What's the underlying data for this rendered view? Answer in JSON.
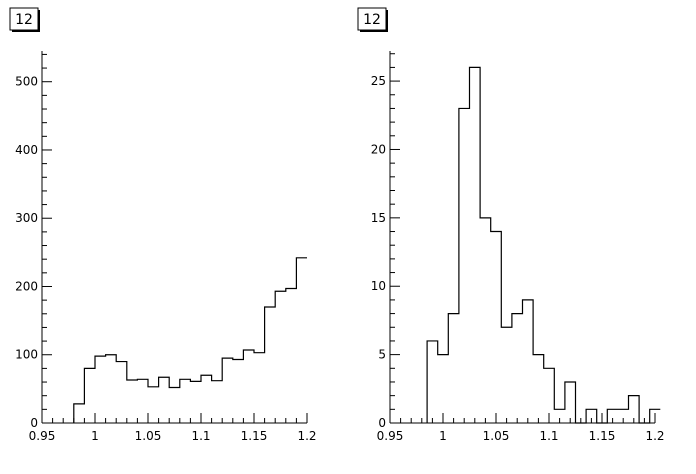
{
  "chart_data": [
    {
      "type": "bar",
      "title": "12",
      "xlim": [
        0.95,
        1.2
      ],
      "ylim": [
        0,
        545
      ],
      "bin_width": 0.01,
      "x_ticks": [
        {
          "value": 0.95,
          "label": "0.95"
        },
        {
          "value": 1.0,
          "label": "1"
        },
        {
          "value": 1.05,
          "label": "1.05"
        },
        {
          "value": 1.1,
          "label": "1.1"
        },
        {
          "value": 1.15,
          "label": "1.15"
        },
        {
          "value": 1.2,
          "label": "1.2"
        }
      ],
      "y_ticks": [
        {
          "value": 0,
          "label": "0"
        },
        {
          "value": 100,
          "label": "100"
        },
        {
          "value": 200,
          "label": "200"
        },
        {
          "value": 300,
          "label": "300"
        },
        {
          "value": 400,
          "label": "400"
        },
        {
          "value": 500,
          "label": "500"
        }
      ],
      "bins": [
        {
          "x": 0.98,
          "y": 28
        },
        {
          "x": 0.99,
          "y": 80
        },
        {
          "x": 1.0,
          "y": 98
        },
        {
          "x": 1.01,
          "y": 100
        },
        {
          "x": 1.02,
          "y": 90
        },
        {
          "x": 1.03,
          "y": 63
        },
        {
          "x": 1.04,
          "y": 64
        },
        {
          "x": 1.05,
          "y": 53
        },
        {
          "x": 1.06,
          "y": 67
        },
        {
          "x": 1.07,
          "y": 52
        },
        {
          "x": 1.08,
          "y": 64
        },
        {
          "x": 1.09,
          "y": 61
        },
        {
          "x": 1.1,
          "y": 70
        },
        {
          "x": 1.11,
          "y": 62
        },
        {
          "x": 1.12,
          "y": 95
        },
        {
          "x": 1.13,
          "y": 93
        },
        {
          "x": 1.14,
          "y": 107
        },
        {
          "x": 1.15,
          "y": 103
        },
        {
          "x": 1.16,
          "y": 170
        },
        {
          "x": 1.17,
          "y": 193
        },
        {
          "x": 1.18,
          "y": 197
        },
        {
          "x": 1.19,
          "y": 242
        }
      ]
    },
    {
      "type": "bar",
      "title": "12",
      "xlim": [
        0.95,
        1.2
      ],
      "ylim": [
        0,
        27.2
      ],
      "bin_width": 0.01,
      "x_ticks": [
        {
          "value": 0.95,
          "label": "0.95"
        },
        {
          "value": 1.0,
          "label": "1"
        },
        {
          "value": 1.05,
          "label": "1.05"
        },
        {
          "value": 1.1,
          "label": "1.1"
        },
        {
          "value": 1.15,
          "label": "1.15"
        },
        {
          "value": 1.2,
          "label": "1.2"
        }
      ],
      "y_ticks": [
        {
          "value": 0,
          "label": "0"
        },
        {
          "value": 5,
          "label": "5"
        },
        {
          "value": 10,
          "label": "10"
        },
        {
          "value": 15,
          "label": "15"
        },
        {
          "value": 20,
          "label": "20"
        },
        {
          "value": 25,
          "label": "25"
        }
      ],
      "bins": [
        {
          "x": 0.985,
          "y": 6
        },
        {
          "x": 0.995,
          "y": 5
        },
        {
          "x": 1.005,
          "y": 8
        },
        {
          "x": 1.015,
          "y": 23
        },
        {
          "x": 1.025,
          "y": 26
        },
        {
          "x": 1.035,
          "y": 15
        },
        {
          "x": 1.045,
          "y": 14
        },
        {
          "x": 1.055,
          "y": 7
        },
        {
          "x": 1.065,
          "y": 8
        },
        {
          "x": 1.075,
          "y": 9
        },
        {
          "x": 1.085,
          "y": 5
        },
        {
          "x": 1.095,
          "y": 4
        },
        {
          "x": 1.105,
          "y": 1
        },
        {
          "x": 1.115,
          "y": 3
        },
        {
          "x": 1.125,
          "y": 0
        },
        {
          "x": 1.135,
          "y": 1
        },
        {
          "x": 1.145,
          "y": 0
        },
        {
          "x": 1.155,
          "y": 1
        },
        {
          "x": 1.165,
          "y": 1
        },
        {
          "x": 1.175,
          "y": 2
        },
        {
          "x": 1.185,
          "y": 0
        },
        {
          "x": 1.195,
          "y": 1
        }
      ]
    }
  ]
}
